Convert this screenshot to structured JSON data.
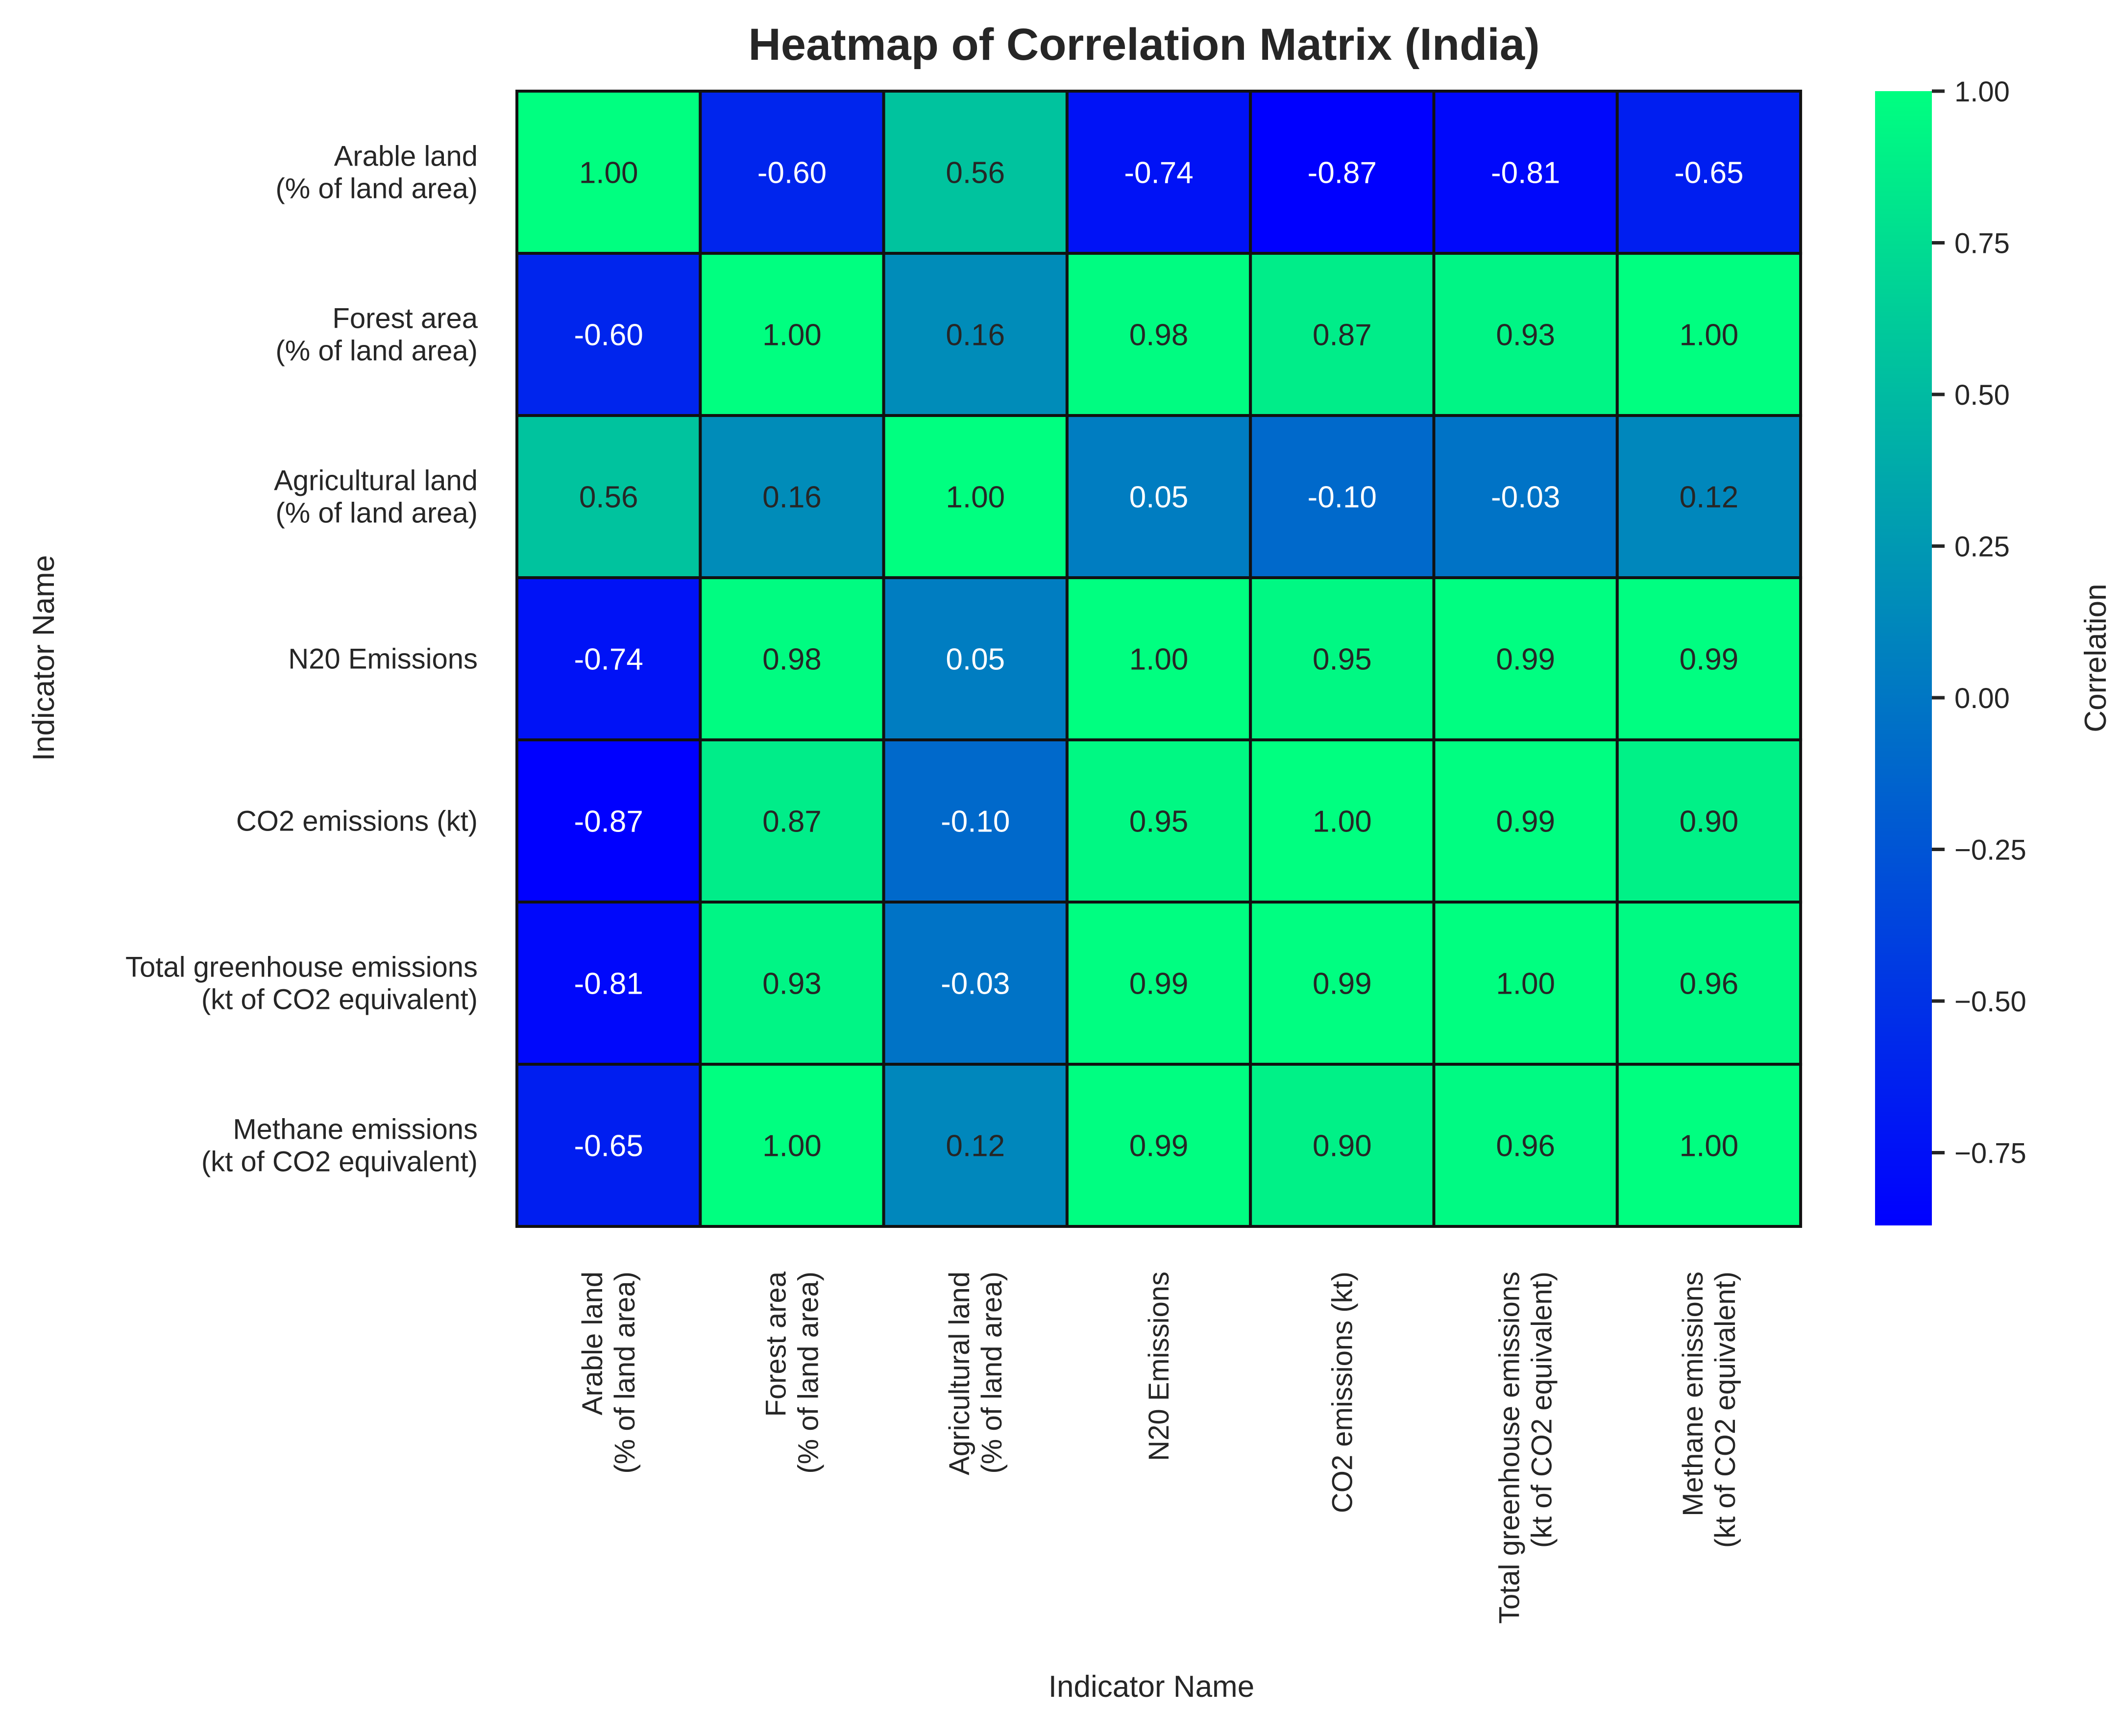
{
  "chart_data": {
    "type": "heatmap",
    "title": "Heatmap of Correlation Matrix (India)",
    "xlabel": "Indicator Name",
    "ylabel": "Indicator Name",
    "colorbar_label": "Correlation",
    "row_labels": [
      [
        "Arable land",
        "(% of land area)"
      ],
      [
        "Forest area",
        "(% of land area)"
      ],
      [
        "Agricultural land",
        "(% of land area)"
      ],
      [
        "N20 Emissions"
      ],
      [
        "CO2 emissions (kt)"
      ],
      [
        "Total greenhouse emissions",
        "(kt of CO2 equivalent)"
      ],
      [
        "Methane emissions",
        "(kt of CO2 equivalent)"
      ]
    ],
    "col_labels": [
      [
        "Arable land",
        "(% of land area)"
      ],
      [
        "Forest area",
        "(% of land area)"
      ],
      [
        "Agricultural land",
        "(% of land area)"
      ],
      [
        "N20 Emissions"
      ],
      [
        "CO2 emissions (kt)"
      ],
      [
        "Total greenhouse emissions",
        "(kt of CO2 equivalent)"
      ],
      [
        "Methane emissions",
        "(kt of CO2 equivalent)"
      ]
    ],
    "matrix": [
      [
        1.0,
        -0.6,
        0.56,
        -0.74,
        -0.87,
        -0.81,
        -0.65
      ],
      [
        -0.6,
        1.0,
        0.16,
        0.98,
        0.87,
        0.93,
        1.0
      ],
      [
        0.56,
        0.16,
        1.0,
        0.05,
        -0.1,
        -0.03,
        0.12
      ],
      [
        -0.74,
        0.98,
        0.05,
        1.0,
        0.95,
        0.99,
        0.99
      ],
      [
        -0.87,
        0.87,
        -0.1,
        0.95,
        1.0,
        0.99,
        0.9
      ],
      [
        -0.81,
        0.93,
        -0.03,
        0.99,
        0.99,
        1.0,
        0.96
      ],
      [
        -0.65,
        1.0,
        0.12,
        0.99,
        0.9,
        0.96,
        1.0
      ]
    ],
    "value_format": "0.00",
    "colormap": "winter",
    "color_low": "#0000ff",
    "color_high": "#00ff80",
    "vmin": -0.87,
    "vmax": 1.0,
    "colorbar_ticks": [
      1.0,
      0.75,
      0.5,
      0.25,
      0.0,
      -0.25,
      -0.5,
      -0.75
    ],
    "colorbar_tick_labels": [
      "1.00",
      "0.75",
      "0.50",
      "0.25",
      "0.00",
      "−0.25",
      "−0.50",
      "−0.75"
    ],
    "cell_border_color": "#111111",
    "annotation_dark_text": "#262626",
    "annotation_light_text": "#ffffff"
  }
}
